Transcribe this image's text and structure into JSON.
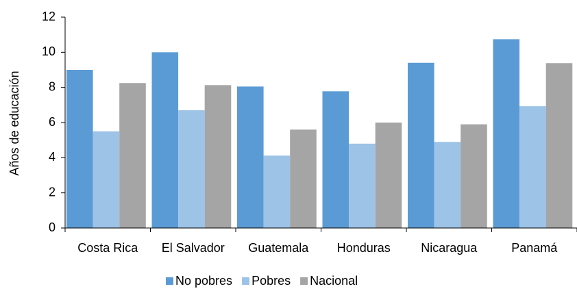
{
  "chart_data": {
    "type": "bar",
    "y_label": "Años de educación",
    "categories": [
      "Costa Rica",
      "El Salvador",
      "Guatemala",
      "Honduras",
      "Nicaragua",
      "Panamá"
    ],
    "series": [
      {
        "name": "No pobres",
        "color": "#5b9bd5",
        "values": [
          9.0,
          10.0,
          8.05,
          7.78,
          9.4,
          10.74
        ]
      },
      {
        "name": "Pobres",
        "color": "#9dc3e6",
        "values": [
          5.5,
          6.7,
          4.12,
          4.8,
          4.9,
          6.93
        ]
      },
      {
        "name": "Nacional",
        "color": "#a5a5a5",
        "values": [
          8.25,
          8.13,
          5.6,
          6.0,
          5.9,
          9.38
        ]
      }
    ],
    "ylim": [
      0,
      12
    ],
    "yticks": [
      0,
      2,
      4,
      6,
      8,
      10,
      12
    ],
    "grid": false,
    "legend": "bottom"
  }
}
